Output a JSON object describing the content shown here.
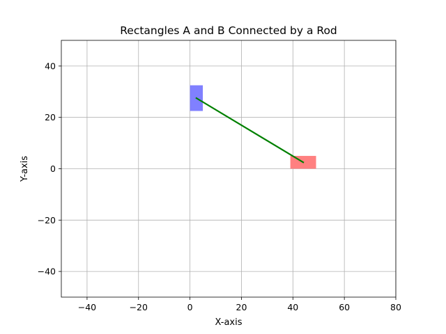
{
  "chart_data": {
    "type": "scatter",
    "title": "Rectangles A and B Connected by a Rod",
    "xlabel": "X-axis",
    "ylabel": "Y-axis",
    "xlim": [
      -50,
      80
    ],
    "ylim": [
      -50,
      50
    ],
    "xticks": [
      -40,
      -20,
      0,
      20,
      40,
      60,
      80
    ],
    "yticks": [
      -40,
      -20,
      0,
      20,
      40
    ],
    "xtick_labels": [
      "−40",
      "−20",
      "0",
      "20",
      "40",
      "60",
      "80"
    ],
    "ytick_labels": [
      "−40",
      "−20",
      "0",
      "20",
      "40"
    ],
    "grid": true,
    "shapes": [
      {
        "kind": "rectangle",
        "x": 0,
        "y": 22.5,
        "width": 5,
        "height": 10,
        "color": "#8080ff"
      },
      {
        "kind": "rectangle",
        "x": 39,
        "y": 0,
        "width": 10,
        "height": 5,
        "color": "#ff8080"
      }
    ],
    "lines": [
      {
        "x": [
          2.5,
          44
        ],
        "y": [
          27.5,
          2.5
        ],
        "color": "#008000"
      }
    ]
  }
}
